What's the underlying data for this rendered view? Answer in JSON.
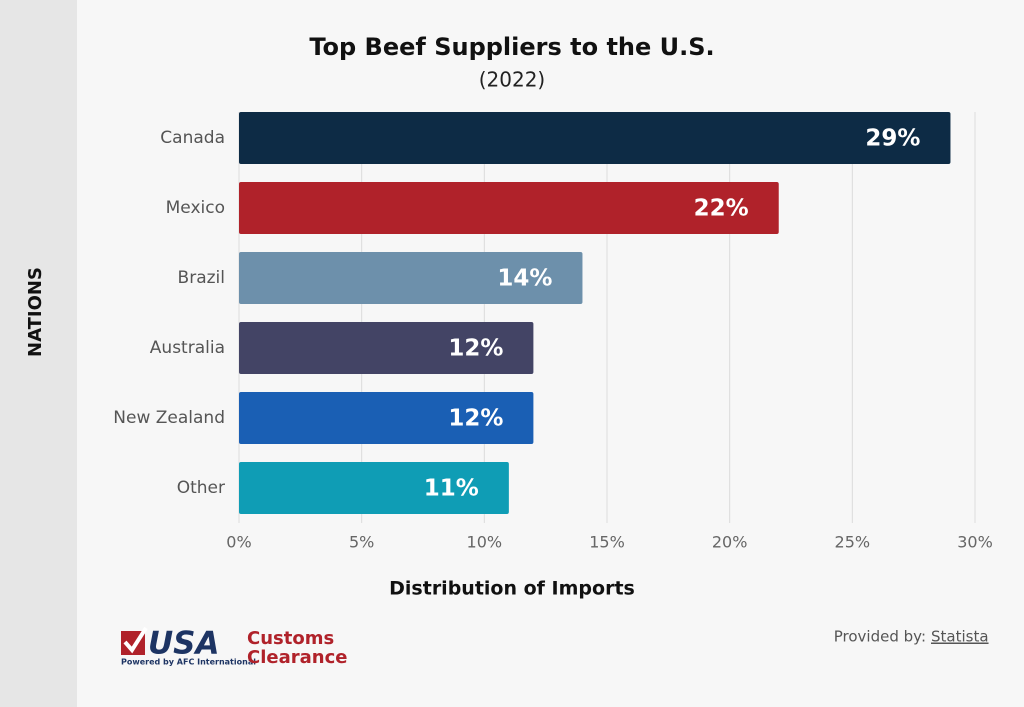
{
  "chart_data": {
    "type": "bar",
    "orientation": "horizontal",
    "title": "Top Beef Suppliers to the U.S.",
    "subtitle": "(2022)",
    "categories": [
      "Canada",
      "Mexico",
      "Brazil",
      "Australia",
      "New Zealand",
      "Other"
    ],
    "values": [
      29,
      22,
      14,
      12,
      12,
      11
    ],
    "value_labels": [
      "29%",
      "22%",
      "14%",
      "12%",
      "12%",
      "11%"
    ],
    "colors": [
      "#0d2b45",
      "#b0222a",
      "#6d90ab",
      "#434465",
      "#1a5fb4",
      "#0f9db5"
    ],
    "xlim": [
      0,
      30
    ],
    "xticks": [
      {
        "value": 0,
        "label": "0%"
      },
      {
        "value": 5,
        "label": "5%"
      },
      {
        "value": 10,
        "label": "10%"
      },
      {
        "value": 15,
        "label": "15%"
      },
      {
        "value": 20,
        "label": "20%"
      },
      {
        "value": 25,
        "label": "25%"
      },
      {
        "value": 30,
        "label": "30%"
      }
    ],
    "xlabel": "Distribution of Imports",
    "ylabel": "NATIONS",
    "grid": true
  },
  "footer": {
    "logo_main": "USA",
    "logo_line1": "Customs",
    "logo_line2": "Clearance",
    "logo_tagline": "Powered by AFC International",
    "provided_by": "Provided by:",
    "source": "Statista"
  }
}
